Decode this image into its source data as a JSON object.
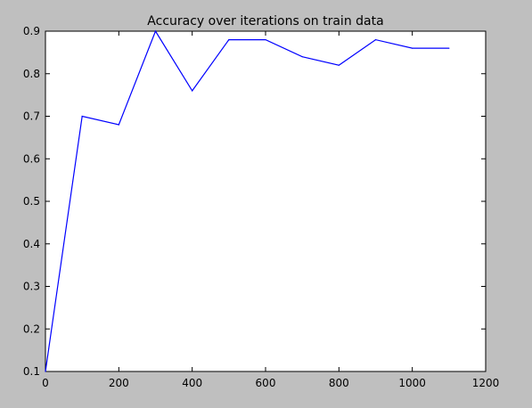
{
  "chart_data": {
    "type": "line",
    "title": "Accuracy over iterations on train data",
    "xlabel": "",
    "ylabel": "",
    "xlim": [
      0,
      1200
    ],
    "ylim": [
      0.1,
      0.9
    ],
    "xticks": [
      0,
      200,
      400,
      600,
      800,
      1000,
      1200
    ],
    "yticks": [
      0.1,
      0.2,
      0.3,
      0.4,
      0.5,
      0.6,
      0.7,
      0.8,
      0.9
    ],
    "xtick_labels": [
      "0",
      "200",
      "400",
      "600",
      "800",
      "1000",
      "1200"
    ],
    "ytick_labels": [
      "0.1",
      "0.2",
      "0.3",
      "0.4",
      "0.5",
      "0.6",
      "0.7",
      "0.8",
      "0.9"
    ],
    "grid": false,
    "series": [
      {
        "color": "#0000ff",
        "x": [
          0,
          100,
          200,
          300,
          400,
          500,
          600,
          700,
          800,
          900,
          1000,
          1100
        ],
        "y": [
          0.1,
          0.7,
          0.68,
          0.9,
          0.76,
          0.88,
          0.88,
          0.84,
          0.82,
          0.88,
          0.86,
          0.86
        ]
      }
    ]
  }
}
